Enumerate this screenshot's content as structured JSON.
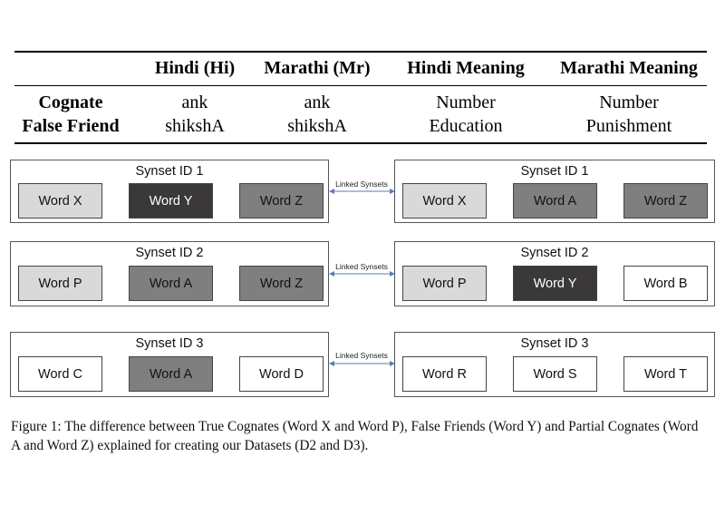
{
  "table": {
    "headers": [
      "",
      "Hindi (Hi)",
      "Marathi (Mr)",
      "Hindi Meaning",
      "Marathi Meaning"
    ],
    "rows": [
      [
        "Cognate",
        "ank",
        "ank",
        "Number",
        "Number"
      ],
      [
        "False Friend",
        "shikshA",
        "shikshA",
        "Education",
        "Punishment"
      ]
    ]
  },
  "diagram": {
    "link_label": "Linked Synsets",
    "rows": [
      {
        "left": {
          "title": "Synset ID 1",
          "words": [
            {
              "text": "Word X",
              "color": "#d9d9d9"
            },
            {
              "text": "Word Y",
              "color": "#3a3838"
            },
            {
              "text": "Word Z",
              "color": "#7f7f7f"
            }
          ]
        },
        "right": {
          "title": "Synset ID 1",
          "words": [
            {
              "text": "Word X",
              "color": "#d9d9d9"
            },
            {
              "text": "Word A",
              "color": "#7f7f7f"
            },
            {
              "text": "Word Z",
              "color": "#7f7f7f"
            }
          ]
        }
      },
      {
        "left": {
          "title": "Synset ID 2",
          "words": [
            {
              "text": "Word P",
              "color": "#d9d9d9"
            },
            {
              "text": "Word A",
              "color": "#7f7f7f"
            },
            {
              "text": "Word Z",
              "color": "#7f7f7f"
            }
          ]
        },
        "right": {
          "title": "Synset ID 2",
          "words": [
            {
              "text": "Word P",
              "color": "#d9d9d9"
            },
            {
              "text": "Word Y",
              "color": "#3a3838"
            },
            {
              "text": "Word B",
              "color": "#ffffff"
            }
          ]
        }
      },
      {
        "left": {
          "title": "Synset ID 3",
          "words": [
            {
              "text": "Word C",
              "color": "#ffffff"
            },
            {
              "text": "Word A",
              "color": "#7f7f7f"
            },
            {
              "text": "Word D",
              "color": "#ffffff"
            }
          ]
        },
        "right": {
          "title": "Synset ID 3",
          "words": [
            {
              "text": "Word R",
              "color": "#ffffff"
            },
            {
              "text": "Word S",
              "color": "#ffffff"
            },
            {
              "text": "Word T",
              "color": "#ffffff"
            }
          ]
        }
      }
    ]
  },
  "caption": {
    "line1": "Figure 1: The difference between True Cognates (Word X and Word P), False Friends (Word Y) and Partial Cognates (Word",
    "line2": "A and Word Z) explained for creating our Datasets (D2 and D3)."
  }
}
